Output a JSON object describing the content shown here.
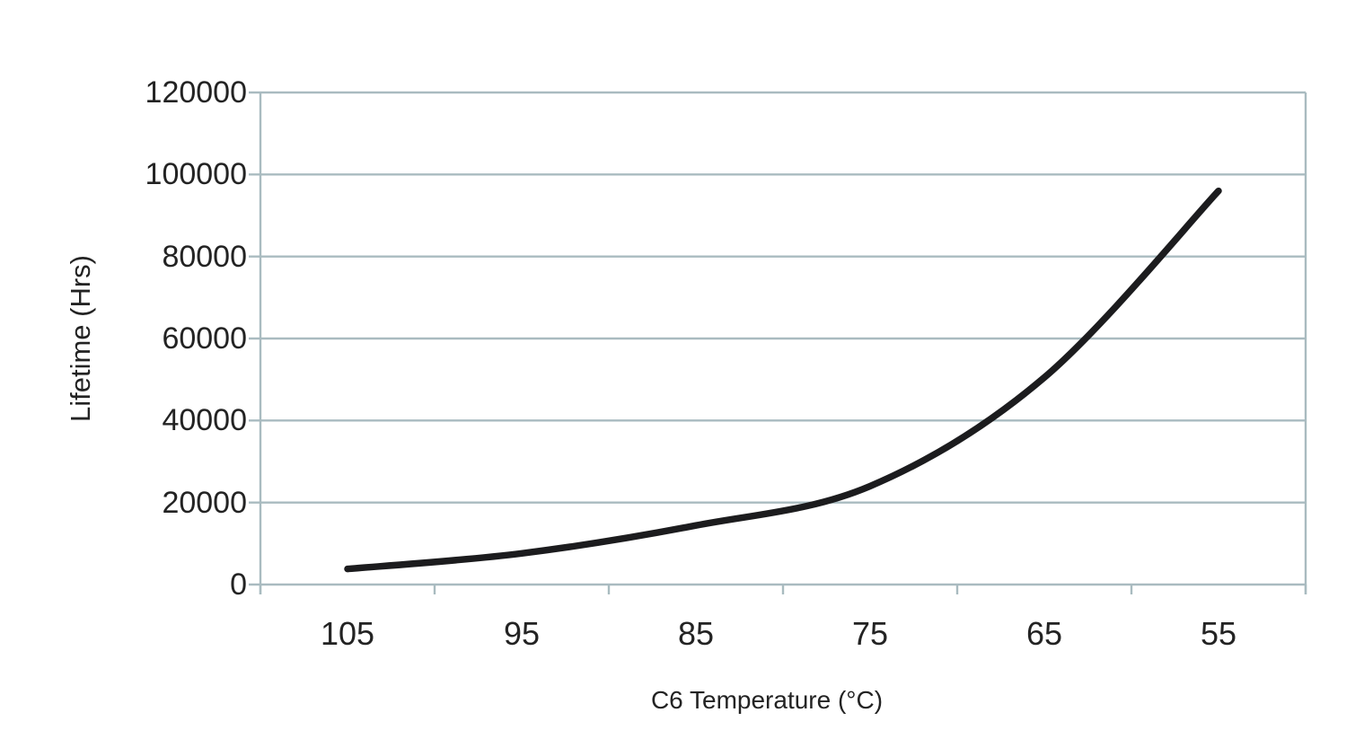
{
  "chart_data": {
    "type": "line",
    "title": "",
    "xlabel": "C6 Temperature (°C)",
    "ylabel": "Lifetime (Hrs)",
    "categories": [
      105,
      95,
      85,
      75,
      65,
      55
    ],
    "x_axis_order": "descending-left-to-right",
    "values": [
      3800,
      7600,
      14400,
      24000,
      50500,
      96000
    ],
    "ylim": [
      0,
      120000
    ],
    "y_ticks": [
      0,
      20000,
      40000,
      60000,
      80000,
      100000,
      120000
    ],
    "grid": "horizontal",
    "legend": "none",
    "colors": {
      "curve": "#1c1c1e",
      "grid": "#a9bbc0",
      "text": "#232323",
      "background": "#ffffff"
    }
  }
}
